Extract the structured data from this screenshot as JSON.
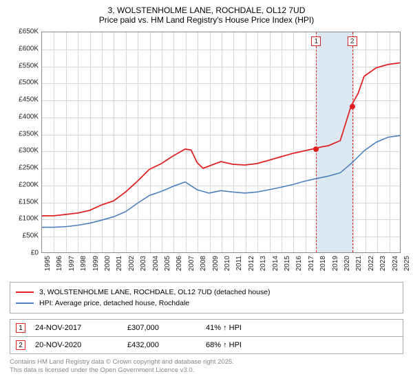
{
  "title": "3, WOLSTENHOLME LANE, ROCHDALE, OL12 7UD",
  "subtitle": "Price paid vs. HM Land Registry's House Price Index (HPI)",
  "chart": {
    "type": "line",
    "background_color": "#ffffff",
    "grid_color": "#d8d8d8",
    "border_color": "#888888",
    "xlim": [
      1995,
      2025
    ],
    "ylim": [
      0,
      650000
    ],
    "ytick_step": 50000,
    "ytick_labels": [
      "£0",
      "£50K",
      "£100K",
      "£150K",
      "£200K",
      "£250K",
      "£300K",
      "£350K",
      "£400K",
      "£450K",
      "£500K",
      "£550K",
      "£600K",
      "£650K"
    ],
    "xtick_step": 1,
    "xtick_labels": [
      "1995",
      "1996",
      "1997",
      "1998",
      "1999",
      "2000",
      "2001",
      "2002",
      "2003",
      "2004",
      "2005",
      "2006",
      "2007",
      "2008",
      "2009",
      "2010",
      "2011",
      "2012",
      "2013",
      "2014",
      "2015",
      "2016",
      "2017",
      "2018",
      "2019",
      "2020",
      "2021",
      "2022",
      "2023",
      "2024",
      "2025"
    ],
    "label_fontsize": 10,
    "shade_band": {
      "x_start": 2017.9,
      "x_end": 2020.9,
      "color": "#dce8f2"
    },
    "vertical_markers": [
      {
        "id": "1",
        "x": 2017.9,
        "line_color": "#e02020"
      },
      {
        "id": "2",
        "x": 2020.9,
        "line_color": "#e02020"
      }
    ],
    "point_markers": [
      {
        "x": 2017.9,
        "y": 307000,
        "color": "#e02020",
        "size": 8
      },
      {
        "x": 2020.9,
        "y": 432000,
        "color": "#e02020",
        "size": 8
      }
    ],
    "series": [
      {
        "name": "price_paid",
        "label": "3, WOLSTENHOLME LANE, ROCHDALE, OL12 7UD (detached house)",
        "color": "#e02020",
        "line_width": 1.8,
        "x": [
          1995,
          1996,
          1997,
          1998,
          1999,
          2000,
          2001,
          2002,
          2003,
          2004,
          2005,
          2006,
          2007,
          2007.5,
          2008,
          2008.5,
          2009,
          2010,
          2011,
          2012,
          2013,
          2014,
          2015,
          2016,
          2017,
          2017.9,
          2018.5,
          2019,
          2020,
          2020.9,
          2021.5,
          2022,
          2023,
          2024,
          2025
        ],
        "y": [
          108000,
          108000,
          112000,
          116000,
          124000,
          140000,
          152000,
          178000,
          210000,
          245000,
          262000,
          285000,
          305000,
          302000,
          265000,
          248000,
          255000,
          268000,
          260000,
          258000,
          262000,
          272000,
          282000,
          292000,
          300000,
          307000,
          312000,
          315000,
          330000,
          432000,
          470000,
          520000,
          545000,
          555000,
          560000
        ]
      },
      {
        "name": "hpi",
        "label": "HPI: Average price, detached house, Rochdale",
        "color": "#4a7fbf",
        "line_width": 1.6,
        "x": [
          1995,
          1996,
          1997,
          1998,
          1999,
          2000,
          2001,
          2002,
          2003,
          2004,
          2005,
          2006,
          2007,
          2008,
          2009,
          2010,
          2011,
          2012,
          2013,
          2014,
          2015,
          2016,
          2017,
          2018,
          2019,
          2020,
          2021,
          2022,
          2023,
          2024,
          2025
        ],
        "y": [
          74000,
          74000,
          76000,
          80000,
          86000,
          95000,
          105000,
          120000,
          145000,
          168000,
          180000,
          195000,
          208000,
          185000,
          175000,
          182000,
          178000,
          175000,
          178000,
          185000,
          192000,
          200000,
          210000,
          218000,
          225000,
          235000,
          265000,
          300000,
          325000,
          340000,
          345000
        ]
      }
    ]
  },
  "legend": {
    "items": [
      {
        "color": "#e02020",
        "text": "3, WOLSTENHOLME LANE, ROCHDALE, OL12 7UD (detached house)"
      },
      {
        "color": "#4a7fbf",
        "text": "HPI: Average price, detached house, Rochdale"
      }
    ]
  },
  "sales": [
    {
      "marker": "1",
      "date": "24-NOV-2017",
      "price": "£307,000",
      "diff": "41% ↑ HPI"
    },
    {
      "marker": "2",
      "date": "20-NOV-2020",
      "price": "£432,000",
      "diff": "68% ↑ HPI"
    }
  ],
  "footer_line1": "Contains HM Land Registry data © Crown copyright and database right 2025.",
  "footer_line2": "This data is licensed under the Open Government Licence v3.0."
}
